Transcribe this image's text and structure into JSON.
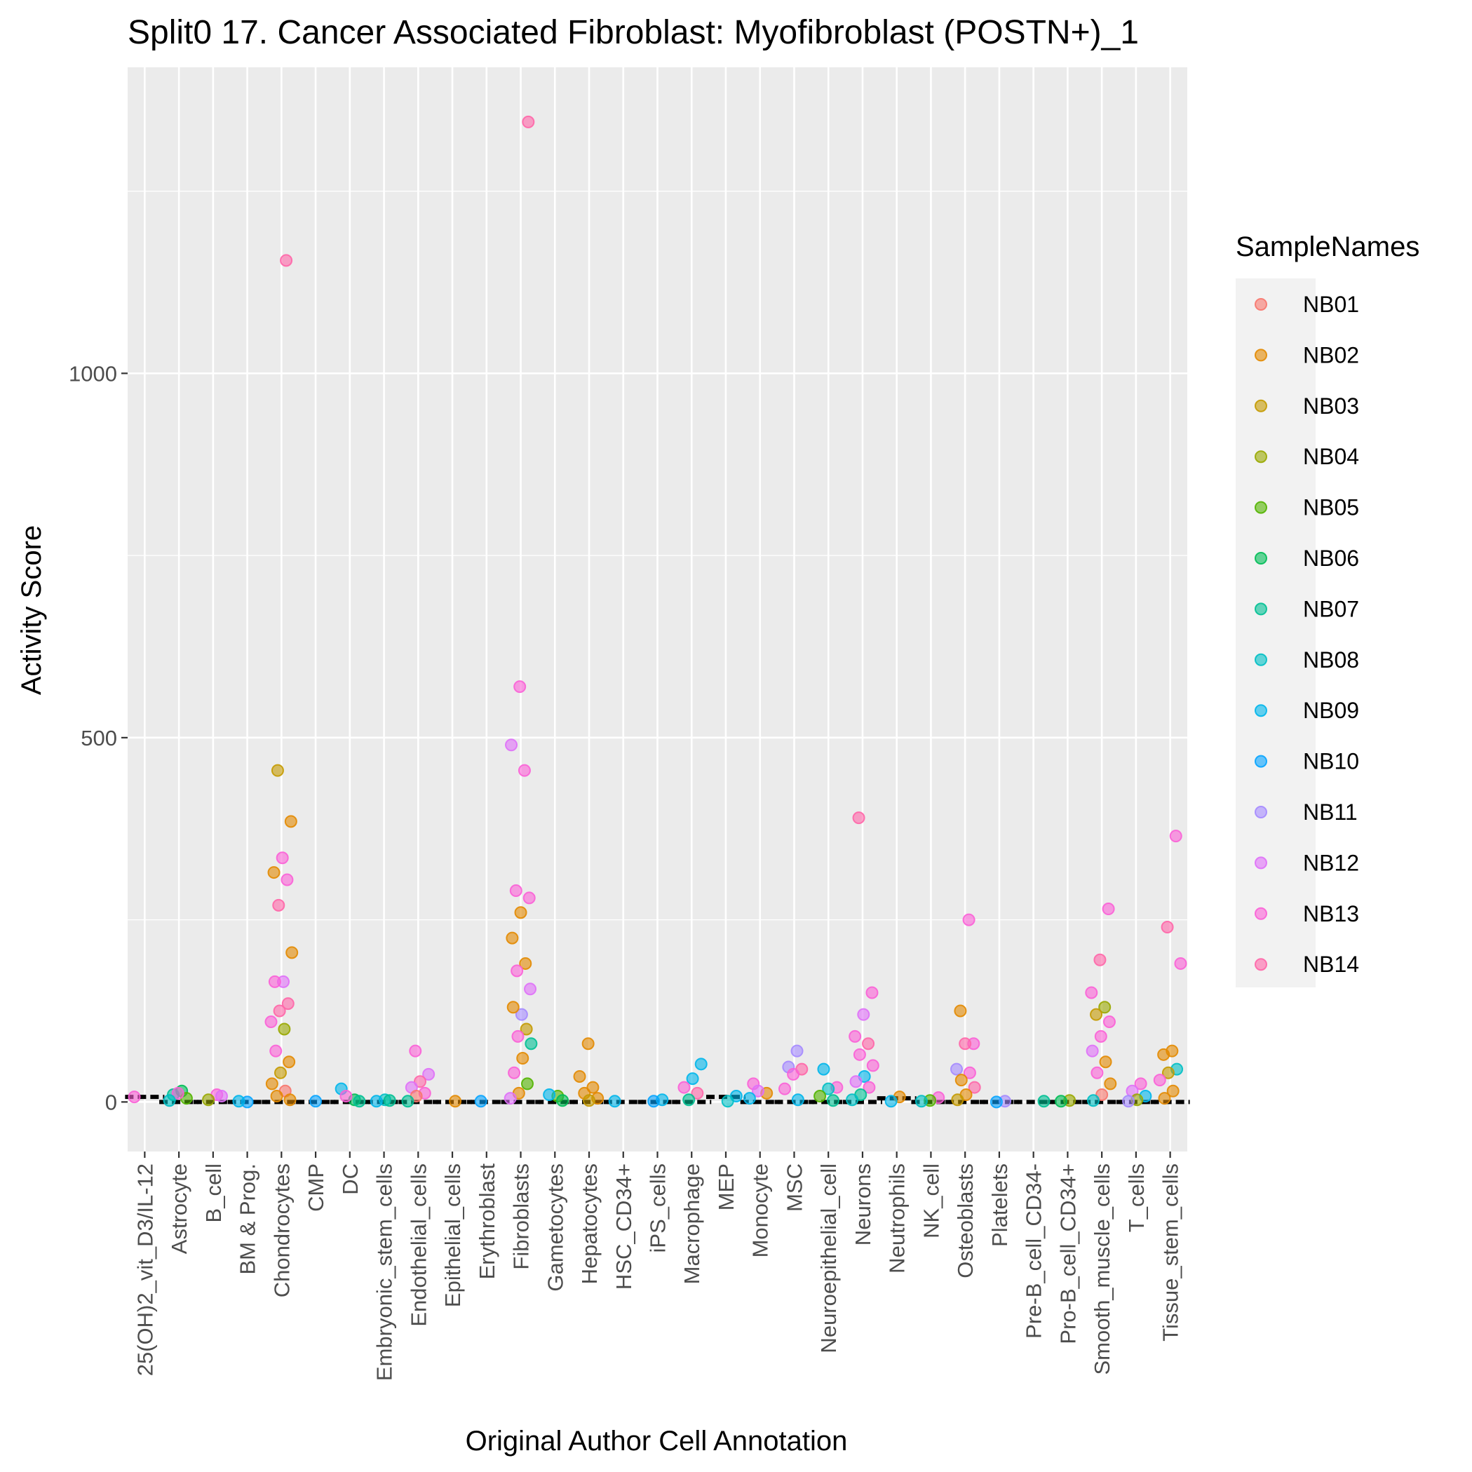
{
  "chart_data": {
    "type": "scatter",
    "title": "Split0 17. Cancer Associated Fibroblast: Myofibroblast (POSTN+)_1",
    "xlabel": "Original Author Cell Annotation",
    "ylabel": "Activity Score",
    "ylim": [
      -68,
      1420
    ],
    "yticks": [
      0,
      500,
      1000
    ],
    "grid": true,
    "legend_position": "right",
    "categories": [
      "25(OH)2_vit_D3/IL-12",
      "Astrocyte",
      "B_cell",
      "BM & Prog.",
      "Chondrocytes",
      "CMP",
      "DC",
      "Embryonic_stem_cells",
      "Endothelial_cells",
      "Epithelial_cells",
      "Erythroblast",
      "Fibroblasts",
      "Gametocytes",
      "Hepatocytes",
      "HSC_CD34+",
      "iPS_cells",
      "Macrophage",
      "MEP",
      "Monocyte",
      "MSC",
      "Neuroepithelial_cell",
      "Neurons",
      "Neutrophils",
      "NK_cell",
      "Osteoblasts",
      "Platelets",
      "Pre-B_cell_CD34-",
      "Pro-B_cell_CD34+",
      "Smooth_muscle_cells",
      "T_cells",
      "Tissue_stem_cells"
    ],
    "medians": [
      7,
      0,
      0,
      0,
      0,
      0,
      0,
      0,
      0,
      0,
      0,
      0,
      0,
      0,
      0,
      0,
      0,
      7,
      0,
      0,
      0,
      0,
      5,
      0,
      0,
      0,
      0,
      0,
      0,
      0,
      0
    ],
    "legend": {
      "title": "SampleNames",
      "entries": [
        {
          "name": "NB01",
          "color": "#F8766D"
        },
        {
          "name": "NB02",
          "color": "#E38900"
        },
        {
          "name": "NB03",
          "color": "#C49A00"
        },
        {
          "name": "NB04",
          "color": "#99A800"
        },
        {
          "name": "NB05",
          "color": "#53B400"
        },
        {
          "name": "NB06",
          "color": "#00BC56"
        },
        {
          "name": "NB07",
          "color": "#00C094"
        },
        {
          "name": "NB08",
          "color": "#00BFC4"
        },
        {
          "name": "NB09",
          "color": "#00B6EB"
        },
        {
          "name": "NB10",
          "color": "#06A4FF"
        },
        {
          "name": "NB11",
          "color": "#A58AFF"
        },
        {
          "name": "NB12",
          "color": "#DF70F8"
        },
        {
          "name": "NB13",
          "color": "#FB61D7"
        },
        {
          "name": "NB14",
          "color": "#FF66A8"
        }
      ]
    },
    "points": [
      {
        "c": 0,
        "s": "NB13",
        "y": 7
      },
      {
        "c": 1,
        "s": "NB06",
        "y": 15
      },
      {
        "c": 1,
        "s": "NB07",
        "y": 10
      },
      {
        "c": 1,
        "s": "NB05",
        "y": 5
      },
      {
        "c": 1,
        "s": "NB13",
        "y": 12
      },
      {
        "c": 1,
        "s": "NB08",
        "y": 2
      },
      {
        "c": 2,
        "s": "NB13",
        "y": 10
      },
      {
        "c": 2,
        "s": "NB04",
        "y": 3
      },
      {
        "c": 2,
        "s": "NB12",
        "y": 8
      },
      {
        "c": 3,
        "s": "NB10",
        "y": 0
      },
      {
        "c": 3,
        "s": "NB09",
        "y": 1
      },
      {
        "c": 4,
        "s": "NB14",
        "y": 1155
      },
      {
        "c": 4,
        "s": "NB03",
        "y": 455
      },
      {
        "c": 4,
        "s": "NB02",
        "y": 385
      },
      {
        "c": 4,
        "s": "NB13",
        "y": 335
      },
      {
        "c": 4,
        "s": "NB02",
        "y": 315
      },
      {
        "c": 4,
        "s": "NB13",
        "y": 305
      },
      {
        "c": 4,
        "s": "NB14",
        "y": 270
      },
      {
        "c": 4,
        "s": "NB02",
        "y": 205
      },
      {
        "c": 4,
        "s": "NB12",
        "y": 165
      },
      {
        "c": 4,
        "s": "NB13",
        "y": 165
      },
      {
        "c": 4,
        "s": "NB14",
        "y": 135
      },
      {
        "c": 4,
        "s": "NB14",
        "y": 125
      },
      {
        "c": 4,
        "s": "NB13",
        "y": 110
      },
      {
        "c": 4,
        "s": "NB04",
        "y": 100
      },
      {
        "c": 4,
        "s": "NB13",
        "y": 70
      },
      {
        "c": 4,
        "s": "NB02",
        "y": 55
      },
      {
        "c": 4,
        "s": "NB03",
        "y": 40
      },
      {
        "c": 4,
        "s": "NB02",
        "y": 25
      },
      {
        "c": 4,
        "s": "NB01",
        "y": 15
      },
      {
        "c": 4,
        "s": "NB02",
        "y": 8
      },
      {
        "c": 4,
        "s": "NB02",
        "y": 3
      },
      {
        "c": 5,
        "s": "NB10",
        "y": 1
      },
      {
        "c": 6,
        "s": "NB09",
        "y": 18
      },
      {
        "c": 6,
        "s": "NB06",
        "y": 3
      },
      {
        "c": 6,
        "s": "NB13",
        "y": 8
      },
      {
        "c": 6,
        "s": "NB07",
        "y": 1
      },
      {
        "c": 7,
        "s": "NB08",
        "y": 3
      },
      {
        "c": 7,
        "s": "NB09",
        "y": 1
      },
      {
        "c": 7,
        "s": "NB07",
        "y": 2
      },
      {
        "c": 8,
        "s": "NB13",
        "y": 70
      },
      {
        "c": 8,
        "s": "NB12",
        "y": 38
      },
      {
        "c": 8,
        "s": "NB14",
        "y": 28
      },
      {
        "c": 8,
        "s": "NB12",
        "y": 20
      },
      {
        "c": 8,
        "s": "NB13",
        "y": 12
      },
      {
        "c": 8,
        "s": "NB01",
        "y": 8
      },
      {
        "c": 8,
        "s": "NB07",
        "y": 1
      },
      {
        "c": 9,
        "s": "NB02",
        "y": 1
      },
      {
        "c": 10,
        "s": "NB10",
        "y": 1
      },
      {
        "c": 11,
        "s": "NB14",
        "y": 1345
      },
      {
        "c": 11,
        "s": "NB13",
        "y": 570
      },
      {
        "c": 11,
        "s": "NB12",
        "y": 490
      },
      {
        "c": 11,
        "s": "NB13",
        "y": 455
      },
      {
        "c": 11,
        "s": "NB13",
        "y": 290
      },
      {
        "c": 11,
        "s": "NB13",
        "y": 280
      },
      {
        "c": 11,
        "s": "NB02",
        "y": 260
      },
      {
        "c": 11,
        "s": "NB02",
        "y": 225
      },
      {
        "c": 11,
        "s": "NB02",
        "y": 190
      },
      {
        "c": 11,
        "s": "NB13",
        "y": 180
      },
      {
        "c": 11,
        "s": "NB12",
        "y": 155
      },
      {
        "c": 11,
        "s": "NB11",
        "y": 120
      },
      {
        "c": 11,
        "s": "NB02",
        "y": 130
      },
      {
        "c": 11,
        "s": "NB03",
        "y": 100
      },
      {
        "c": 11,
        "s": "NB13",
        "y": 90
      },
      {
        "c": 11,
        "s": "NB07",
        "y": 80
      },
      {
        "c": 11,
        "s": "NB02",
        "y": 60
      },
      {
        "c": 11,
        "s": "NB13",
        "y": 40
      },
      {
        "c": 11,
        "s": "NB05",
        "y": 25
      },
      {
        "c": 11,
        "s": "NB02",
        "y": 12
      },
      {
        "c": 11,
        "s": "NB12",
        "y": 5
      },
      {
        "c": 12,
        "s": "NB05",
        "y": 8
      },
      {
        "c": 12,
        "s": "NB09",
        "y": 10
      },
      {
        "c": 12,
        "s": "NB06",
        "y": 2
      },
      {
        "c": 13,
        "s": "NB02",
        "y": 80
      },
      {
        "c": 13,
        "s": "NB02",
        "y": 35
      },
      {
        "c": 13,
        "s": "NB02",
        "y": 20
      },
      {
        "c": 13,
        "s": "NB02",
        "y": 12
      },
      {
        "c": 13,
        "s": "NB02",
        "y": 5
      },
      {
        "c": 13,
        "s": "NB03",
        "y": 2
      },
      {
        "c": 14,
        "s": "NB09",
        "y": 1
      },
      {
        "c": 15,
        "s": "NB09",
        "y": 3
      },
      {
        "c": 15,
        "s": "NB10",
        "y": 1
      },
      {
        "c": 16,
        "s": "NB09",
        "y": 52
      },
      {
        "c": 16,
        "s": "NB09",
        "y": 32
      },
      {
        "c": 16,
        "s": "NB13",
        "y": 20
      },
      {
        "c": 16,
        "s": "NB14",
        "y": 12
      },
      {
        "c": 16,
        "s": "NB07",
        "y": 3
      },
      {
        "c": 17,
        "s": "NB09",
        "y": 8
      },
      {
        "c": 17,
        "s": "NB08",
        "y": 1
      },
      {
        "c": 18,
        "s": "NB13",
        "y": 25
      },
      {
        "c": 18,
        "s": "NB02",
        "y": 12
      },
      {
        "c": 18,
        "s": "NB12",
        "y": 15
      },
      {
        "c": 18,
        "s": "NB09",
        "y": 5
      },
      {
        "c": 19,
        "s": "NB11",
        "y": 70
      },
      {
        "c": 19,
        "s": "NB11",
        "y": 48
      },
      {
        "c": 19,
        "s": "NB14",
        "y": 45
      },
      {
        "c": 19,
        "s": "NB13",
        "y": 38
      },
      {
        "c": 19,
        "s": "NB13",
        "y": 18
      },
      {
        "c": 19,
        "s": "NB09",
        "y": 3
      },
      {
        "c": 20,
        "s": "NB09",
        "y": 45
      },
      {
        "c": 20,
        "s": "NB13",
        "y": 20
      },
      {
        "c": 20,
        "s": "NB08",
        "y": 18
      },
      {
        "c": 20,
        "s": "NB05",
        "y": 8
      },
      {
        "c": 20,
        "s": "NB07",
        "y": 2
      },
      {
        "c": 21,
        "s": "NB14",
        "y": 390
      },
      {
        "c": 21,
        "s": "NB13",
        "y": 150
      },
      {
        "c": 21,
        "s": "NB12",
        "y": 120
      },
      {
        "c": 21,
        "s": "NB13",
        "y": 90
      },
      {
        "c": 21,
        "s": "NB14",
        "y": 80
      },
      {
        "c": 21,
        "s": "NB13",
        "y": 65
      },
      {
        "c": 21,
        "s": "NB13",
        "y": 50
      },
      {
        "c": 21,
        "s": "NB09",
        "y": 35
      },
      {
        "c": 21,
        "s": "NB12",
        "y": 28
      },
      {
        "c": 21,
        "s": "NB13",
        "y": 20
      },
      {
        "c": 21,
        "s": "NB07",
        "y": 10
      },
      {
        "c": 21,
        "s": "NB08",
        "y": 3
      },
      {
        "c": 22,
        "s": "NB02",
        "y": 7
      },
      {
        "c": 22,
        "s": "NB09",
        "y": 1
      },
      {
        "c": 23,
        "s": "NB13",
        "y": 6
      },
      {
        "c": 23,
        "s": "NB05",
        "y": 2
      },
      {
        "c": 23,
        "s": "NB08",
        "y": 1
      },
      {
        "c": 24,
        "s": "NB13",
        "y": 250
      },
      {
        "c": 24,
        "s": "NB02",
        "y": 125
      },
      {
        "c": 24,
        "s": "NB13",
        "y": 80
      },
      {
        "c": 24,
        "s": "NB14",
        "y": 80
      },
      {
        "c": 24,
        "s": "NB11",
        "y": 45
      },
      {
        "c": 24,
        "s": "NB13",
        "y": 40
      },
      {
        "c": 24,
        "s": "NB02",
        "y": 30
      },
      {
        "c": 24,
        "s": "NB14",
        "y": 20
      },
      {
        "c": 24,
        "s": "NB02",
        "y": 10
      },
      {
        "c": 24,
        "s": "NB03",
        "y": 3
      },
      {
        "c": 25,
        "s": "NB11",
        "y": 1
      },
      {
        "c": 25,
        "s": "NB10",
        "y": 0
      },
      {
        "c": 26,
        "s": "NB07",
        "y": 1
      },
      {
        "c": 27,
        "s": "NB04",
        "y": 2
      },
      {
        "c": 27,
        "s": "NB06",
        "y": 1
      },
      {
        "c": 28,
        "s": "NB13",
        "y": 265
      },
      {
        "c": 28,
        "s": "NB14",
        "y": 195
      },
      {
        "c": 28,
        "s": "NB13",
        "y": 150
      },
      {
        "c": 28,
        "s": "NB04",
        "y": 130
      },
      {
        "c": 28,
        "s": "NB03",
        "y": 120
      },
      {
        "c": 28,
        "s": "NB13",
        "y": 110
      },
      {
        "c": 28,
        "s": "NB13",
        "y": 90
      },
      {
        "c": 28,
        "s": "NB12",
        "y": 70
      },
      {
        "c": 28,
        "s": "NB02",
        "y": 55
      },
      {
        "c": 28,
        "s": "NB13",
        "y": 40
      },
      {
        "c": 28,
        "s": "NB02",
        "y": 25
      },
      {
        "c": 28,
        "s": "NB01",
        "y": 10
      },
      {
        "c": 28,
        "s": "NB08",
        "y": 2
      },
      {
        "c": 29,
        "s": "NB13",
        "y": 25
      },
      {
        "c": 29,
        "s": "NB12",
        "y": 15
      },
      {
        "c": 29,
        "s": "NB09",
        "y": 8
      },
      {
        "c": 29,
        "s": "NB04",
        "y": 3
      },
      {
        "c": 29,
        "s": "NB11",
        "y": 1
      },
      {
        "c": 30,
        "s": "NB13",
        "y": 365
      },
      {
        "c": 30,
        "s": "NB14",
        "y": 240
      },
      {
        "c": 30,
        "s": "NB13",
        "y": 190
      },
      {
        "c": 30,
        "s": "NB02",
        "y": 70
      },
      {
        "c": 30,
        "s": "NB02",
        "y": 65
      },
      {
        "c": 30,
        "s": "NB08",
        "y": 45
      },
      {
        "c": 30,
        "s": "NB03",
        "y": 40
      },
      {
        "c": 30,
        "s": "NB13",
        "y": 30
      },
      {
        "c": 30,
        "s": "NB02",
        "y": 15
      },
      {
        "c": 30,
        "s": "NB02",
        "y": 5
      }
    ]
  }
}
